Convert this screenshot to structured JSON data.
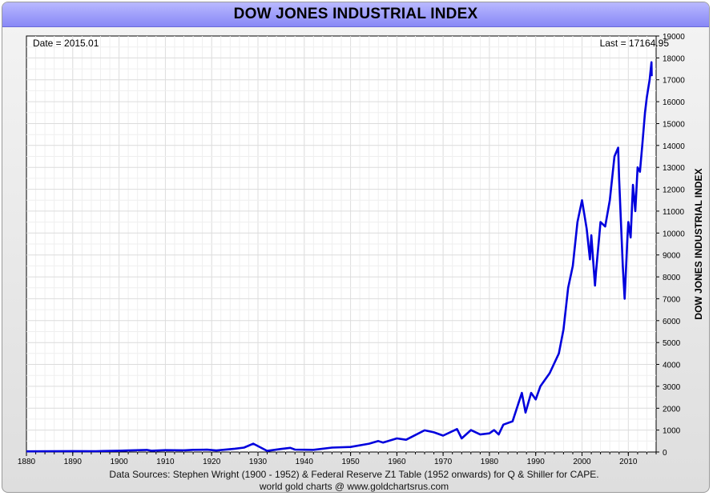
{
  "header": {
    "title": "DOW JONES INDUSTRIAL INDEX"
  },
  "info": {
    "date_label": "Date = 2015.01",
    "last_label": "Last = 17164.95"
  },
  "footer": {
    "sources": "Data Sources: Stephen Wright (1900 - 1952) & Federal Reserve Z1 Table (1952 onwards) for Q & Shiller for CAPE.",
    "credit": "world gold charts @ www.goldchartsrus.com"
  },
  "chart_data": {
    "type": "line",
    "title": "DOW JONES INDUSTRIAL INDEX",
    "ylabel": "DOW JONES INDUSTRIAL INDEX",
    "xlabel": "",
    "xlim": [
      1880,
      2016
    ],
    "ylim": [
      0,
      19000
    ],
    "x_ticks": [
      1880,
      1890,
      1900,
      1910,
      1920,
      1930,
      1940,
      1950,
      1960,
      1970,
      1980,
      1990,
      2000,
      2010
    ],
    "y_ticks": [
      0,
      1000,
      2000,
      3000,
      4000,
      5000,
      6000,
      7000,
      8000,
      9000,
      10000,
      11000,
      12000,
      13000,
      14000,
      15000,
      16000,
      17000,
      18000,
      19000
    ],
    "grid": true,
    "line_color": "#0000dd",
    "series": [
      {
        "values": [
          [
            1880,
            30
          ],
          [
            1885,
            35
          ],
          [
            1890,
            40
          ],
          [
            1895,
            38
          ],
          [
            1900,
            60
          ],
          [
            1902,
            70
          ],
          [
            1906,
            95
          ],
          [
            1907,
            60
          ],
          [
            1910,
            85
          ],
          [
            1914,
            75
          ],
          [
            1916,
            100
          ],
          [
            1919,
            105
          ],
          [
            1921,
            70
          ],
          [
            1925,
            150
          ],
          [
            1927,
            200
          ],
          [
            1929,
            380
          ],
          [
            1930,
            270
          ],
          [
            1932,
            50
          ],
          [
            1935,
            140
          ],
          [
            1937,
            190
          ],
          [
            1938,
            110
          ],
          [
            1942,
            100
          ],
          [
            1946,
            200
          ],
          [
            1950,
            230
          ],
          [
            1954,
            380
          ],
          [
            1956,
            500
          ],
          [
            1957,
            430
          ],
          [
            1960,
            620
          ],
          [
            1962,
            560
          ],
          [
            1966,
            990
          ],
          [
            1968,
            900
          ],
          [
            1970,
            750
          ],
          [
            1973,
            1050
          ],
          [
            1974,
            620
          ],
          [
            1976,
            1000
          ],
          [
            1978,
            800
          ],
          [
            1980,
            850
          ],
          [
            1981,
            1000
          ],
          [
            1982,
            800
          ],
          [
            1983,
            1250
          ],
          [
            1985,
            1400
          ],
          [
            1987,
            2700
          ],
          [
            1987.8,
            1800
          ],
          [
            1989,
            2700
          ],
          [
            1990,
            2400
          ],
          [
            1991,
            3000
          ],
          [
            1993,
            3600
          ],
          [
            1995,
            4500
          ],
          [
            1996,
            5600
          ],
          [
            1997,
            7500
          ],
          [
            1998,
            8500
          ],
          [
            1999,
            10500
          ],
          [
            2000,
            11500
          ],
          [
            2001,
            10200
          ],
          [
            2001.7,
            8800
          ],
          [
            2002,
            9900
          ],
          [
            2002.8,
            7600
          ],
          [
            2003,
            8200
          ],
          [
            2004,
            10500
          ],
          [
            2005,
            10300
          ],
          [
            2006,
            11500
          ],
          [
            2007,
            13500
          ],
          [
            2007.8,
            13900
          ],
          [
            2008,
            12500
          ],
          [
            2008.8,
            8500
          ],
          [
            2009.2,
            7000
          ],
          [
            2009.8,
            9800
          ],
          [
            2010,
            10500
          ],
          [
            2010.5,
            9800
          ],
          [
            2011,
            12200
          ],
          [
            2011.5,
            11000
          ],
          [
            2012,
            13000
          ],
          [
            2012.5,
            12800
          ],
          [
            2013,
            14000
          ],
          [
            2013.6,
            15500
          ],
          [
            2014,
            16200
          ],
          [
            2014.6,
            17000
          ],
          [
            2015,
            17800
          ],
          [
            2015.05,
            17164.95
          ]
        ]
      }
    ]
  }
}
